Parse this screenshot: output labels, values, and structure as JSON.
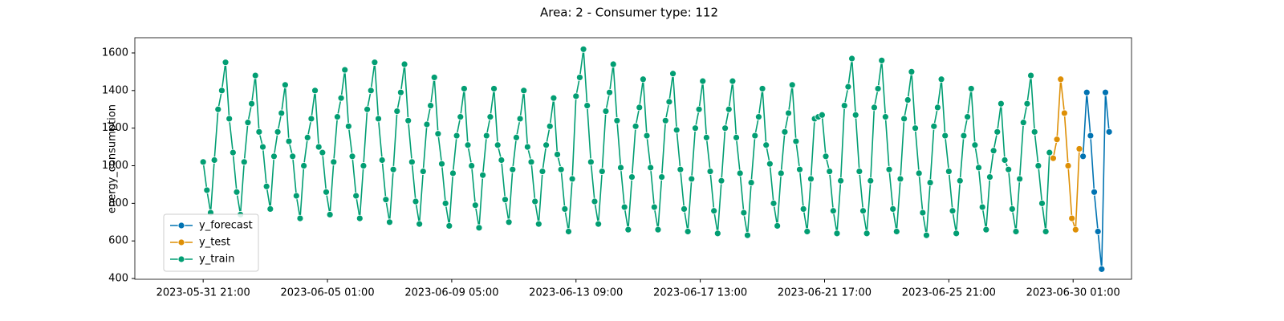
{
  "chart_data": {
    "type": "line",
    "title": "Area: 2 - Consumer type: 112",
    "y_label": "energy_consumption",
    "xlim": [
      "2023-05-29 14:00",
      "2023-07-02 00:00"
    ],
    "xticks": [
      "2023-05-31 21:00",
      "2023-06-05 01:00",
      "2023-06-09 05:00",
      "2023-06-13 09:00",
      "2023-06-17 13:00",
      "2023-06-21 17:00",
      "2023-06-25 21:00",
      "2023-06-30 01:00"
    ],
    "ylim": [
      396,
      1681
    ],
    "yticks": [
      400,
      600,
      800,
      1000,
      1200,
      1400,
      1600
    ],
    "legend": "lower left",
    "grid": false,
    "series": [
      {
        "name": "y_forecast",
        "color": "#0173b2",
        "x": [
          "2023-06-30 09:00",
          "2023-06-30 12:00",
          "2023-06-30 15:00",
          "2023-06-30 18:00",
          "2023-06-30 21:00",
          "2023-07-01 00:00",
          "2023-07-01 03:00",
          "2023-07-01 06:00"
        ],
        "values": [
          1050,
          1390,
          1160,
          860,
          650,
          450,
          1390,
          1180
        ]
      },
      {
        "name": "y_test",
        "color": "#de8f05",
        "x": [
          "2023-06-29 09:00",
          "2023-06-29 12:00",
          "2023-06-29 15:00",
          "2023-06-29 18:00",
          "2023-06-29 21:00",
          "2023-06-30 00:00",
          "2023-06-30 03:00",
          "2023-06-30 06:00"
        ],
        "values": [
          1040,
          1140,
          1460,
          1280,
          1000,
          720,
          660,
          1090
        ]
      },
      {
        "name": "y_train",
        "color": "#029e73",
        "x": [
          "2023-05-31 21:00",
          "2023-06-01 00:00",
          "2023-06-01 03:00",
          "2023-06-01 06:00",
          "2023-06-01 09:00",
          "2023-06-01 12:00",
          "2023-06-01 15:00",
          "2023-06-01 18:00",
          "2023-06-01 21:00",
          "2023-06-02 00:00",
          "2023-06-02 03:00",
          "2023-06-02 06:00",
          "2023-06-02 09:00",
          "2023-06-02 12:00",
          "2023-06-02 15:00",
          "2023-06-02 18:00",
          "2023-06-02 21:00",
          "2023-06-03 00:00",
          "2023-06-03 03:00",
          "2023-06-03 06:00",
          "2023-06-03 09:00",
          "2023-06-03 12:00",
          "2023-06-03 15:00",
          "2023-06-03 18:00",
          "2023-06-03 21:00",
          "2023-06-04 00:00",
          "2023-06-04 03:00",
          "2023-06-04 06:00",
          "2023-06-04 09:00",
          "2023-06-04 12:00",
          "2023-06-04 15:00",
          "2023-06-04 18:00",
          "2023-06-04 21:00",
          "2023-06-05 00:00",
          "2023-06-05 03:00",
          "2023-06-05 06:00",
          "2023-06-05 09:00",
          "2023-06-05 12:00",
          "2023-06-05 15:00",
          "2023-06-05 18:00",
          "2023-06-05 21:00",
          "2023-06-06 00:00",
          "2023-06-06 03:00",
          "2023-06-06 06:00",
          "2023-06-06 09:00",
          "2023-06-06 12:00",
          "2023-06-06 15:00",
          "2023-06-06 18:00",
          "2023-06-06 21:00",
          "2023-06-07 00:00",
          "2023-06-07 03:00",
          "2023-06-07 06:00",
          "2023-06-07 09:00",
          "2023-06-07 12:00",
          "2023-06-07 15:00",
          "2023-06-07 18:00",
          "2023-06-07 21:00",
          "2023-06-08 00:00",
          "2023-06-08 03:00",
          "2023-06-08 06:00",
          "2023-06-08 09:00",
          "2023-06-08 12:00",
          "2023-06-08 15:00",
          "2023-06-08 18:00",
          "2023-06-08 21:00",
          "2023-06-09 00:00",
          "2023-06-09 03:00",
          "2023-06-09 06:00",
          "2023-06-09 09:00",
          "2023-06-09 12:00",
          "2023-06-09 15:00",
          "2023-06-09 18:00",
          "2023-06-09 21:00",
          "2023-06-10 00:00",
          "2023-06-10 03:00",
          "2023-06-10 06:00",
          "2023-06-10 09:00",
          "2023-06-10 12:00",
          "2023-06-10 15:00",
          "2023-06-10 18:00",
          "2023-06-10 21:00",
          "2023-06-11 00:00",
          "2023-06-11 03:00",
          "2023-06-11 06:00",
          "2023-06-11 09:00",
          "2023-06-11 12:00",
          "2023-06-11 15:00",
          "2023-06-11 18:00",
          "2023-06-11 21:00",
          "2023-06-12 00:00",
          "2023-06-12 03:00",
          "2023-06-12 06:00",
          "2023-06-12 09:00",
          "2023-06-12 12:00",
          "2023-06-12 15:00",
          "2023-06-12 18:00",
          "2023-06-12 21:00",
          "2023-06-13 00:00",
          "2023-06-13 03:00",
          "2023-06-13 06:00",
          "2023-06-13 09:00",
          "2023-06-13 12:00",
          "2023-06-13 15:00",
          "2023-06-13 18:00",
          "2023-06-13 21:00",
          "2023-06-14 00:00",
          "2023-06-14 03:00",
          "2023-06-14 06:00",
          "2023-06-14 09:00",
          "2023-06-14 12:00",
          "2023-06-14 15:00",
          "2023-06-14 18:00",
          "2023-06-14 21:00",
          "2023-06-15 00:00",
          "2023-06-15 03:00",
          "2023-06-15 06:00",
          "2023-06-15 09:00",
          "2023-06-15 12:00",
          "2023-06-15 15:00",
          "2023-06-15 18:00",
          "2023-06-15 21:00",
          "2023-06-16 00:00",
          "2023-06-16 03:00",
          "2023-06-16 06:00",
          "2023-06-16 09:00",
          "2023-06-16 12:00",
          "2023-06-16 15:00",
          "2023-06-16 18:00",
          "2023-06-16 21:00",
          "2023-06-17 00:00",
          "2023-06-17 03:00",
          "2023-06-17 06:00",
          "2023-06-17 09:00",
          "2023-06-17 12:00",
          "2023-06-17 15:00",
          "2023-06-17 18:00",
          "2023-06-17 21:00",
          "2023-06-18 00:00",
          "2023-06-18 03:00",
          "2023-06-18 06:00",
          "2023-06-18 09:00",
          "2023-06-18 12:00",
          "2023-06-18 15:00",
          "2023-06-18 18:00",
          "2023-06-18 21:00",
          "2023-06-19 00:00",
          "2023-06-19 03:00",
          "2023-06-19 06:00",
          "2023-06-19 09:00",
          "2023-06-19 12:00",
          "2023-06-19 15:00",
          "2023-06-19 18:00",
          "2023-06-19 21:00",
          "2023-06-20 00:00",
          "2023-06-20 03:00",
          "2023-06-20 06:00",
          "2023-06-20 09:00",
          "2023-06-20 12:00",
          "2023-06-20 15:00",
          "2023-06-20 18:00",
          "2023-06-20 21:00",
          "2023-06-21 00:00",
          "2023-06-21 03:00",
          "2023-06-21 06:00",
          "2023-06-21 09:00",
          "2023-06-21 12:00",
          "2023-06-21 15:00",
          "2023-06-21 18:00",
          "2023-06-21 21:00",
          "2023-06-22 00:00",
          "2023-06-22 03:00",
          "2023-06-22 06:00",
          "2023-06-22 09:00",
          "2023-06-22 12:00",
          "2023-06-22 15:00",
          "2023-06-22 18:00",
          "2023-06-22 21:00",
          "2023-06-23 00:00",
          "2023-06-23 03:00",
          "2023-06-23 06:00",
          "2023-06-23 09:00",
          "2023-06-23 12:00",
          "2023-06-23 15:00",
          "2023-06-23 18:00",
          "2023-06-23 21:00",
          "2023-06-24 00:00",
          "2023-06-24 03:00",
          "2023-06-24 06:00",
          "2023-06-24 09:00",
          "2023-06-24 12:00",
          "2023-06-24 15:00",
          "2023-06-24 18:00",
          "2023-06-24 21:00",
          "2023-06-25 00:00",
          "2023-06-25 03:00",
          "2023-06-25 06:00",
          "2023-06-25 09:00",
          "2023-06-25 12:00",
          "2023-06-25 15:00",
          "2023-06-25 18:00",
          "2023-06-25 21:00",
          "2023-06-26 00:00",
          "2023-06-26 03:00",
          "2023-06-26 06:00",
          "2023-06-26 09:00",
          "2023-06-26 12:00",
          "2023-06-26 15:00",
          "2023-06-26 18:00",
          "2023-06-26 21:00",
          "2023-06-27 00:00",
          "2023-06-27 03:00",
          "2023-06-27 06:00",
          "2023-06-27 09:00",
          "2023-06-27 12:00",
          "2023-06-27 15:00",
          "2023-06-27 18:00",
          "2023-06-27 21:00",
          "2023-06-28 00:00",
          "2023-06-28 03:00",
          "2023-06-28 06:00",
          "2023-06-28 09:00",
          "2023-06-28 12:00",
          "2023-06-28 15:00",
          "2023-06-28 18:00",
          "2023-06-28 21:00",
          "2023-06-29 00:00",
          "2023-06-29 03:00",
          "2023-06-29 06:00"
        ],
        "values": [
          1020,
          870,
          750,
          1030,
          1300,
          1400,
          1550,
          1250,
          1070,
          860,
          740,
          1020,
          1230,
          1330,
          1480,
          1180,
          1100,
          890,
          770,
          1050,
          1180,
          1280,
          1430,
          1130,
          1050,
          840,
          720,
          1000,
          1150,
          1250,
          1400,
          1100,
          1070,
          860,
          740,
          1020,
          1260,
          1360,
          1510,
          1210,
          1050,
          840,
          720,
          1000,
          1300,
          1400,
          1550,
          1250,
          1030,
          820,
          700,
          980,
          1290,
          1390,
          1540,
          1240,
          1020,
          810,
          690,
          970,
          1220,
          1320,
          1470,
          1170,
          1010,
          800,
          680,
          960,
          1160,
          1260,
          1410,
          1110,
          1000,
          790,
          670,
          950,
          1160,
          1260,
          1410,
          1110,
          1030,
          820,
          700,
          980,
          1150,
          1250,
          1400,
          1100,
          1020,
          810,
          690,
          970,
          1110,
          1210,
          1360,
          1060,
          980,
          770,
          650,
          930,
          1370,
          1470,
          1620,
          1320,
          1020,
          810,
          690,
          970,
          1290,
          1390,
          1540,
          1240,
          990,
          780,
          660,
          940,
          1210,
          1310,
          1460,
          1160,
          990,
          780,
          660,
          940,
          1240,
          1340,
          1490,
          1190,
          980,
          770,
          650,
          930,
          1200,
          1300,
          1450,
          1150,
          970,
          760,
          640,
          920,
          1200,
          1300,
          1450,
          1150,
          960,
          750,
          630,
          910,
          1160,
          1260,
          1410,
          1110,
          1010,
          800,
          680,
          960,
          1180,
          1280,
          1430,
          1130,
          980,
          770,
          650,
          930,
          1250,
          1260,
          1270,
          1050,
          970,
          760,
          640,
          920,
          1320,
          1420,
          1570,
          1270,
          970,
          760,
          640,
          920,
          1310,
          1410,
          1560,
          1260,
          980,
          770,
          650,
          930,
          1250,
          1350,
          1500,
          1200,
          960,
          750,
          630,
          910,
          1210,
          1310,
          1460,
          1160,
          970,
          760,
          640,
          920,
          1160,
          1260,
          1410,
          1110,
          990,
          780,
          660,
          940,
          1080,
          1180,
          1330,
          1030,
          980,
          770,
          650,
          930,
          1230,
          1330,
          1480,
          1180,
          1000,
          800,
          650,
          1070
        ]
      }
    ]
  }
}
